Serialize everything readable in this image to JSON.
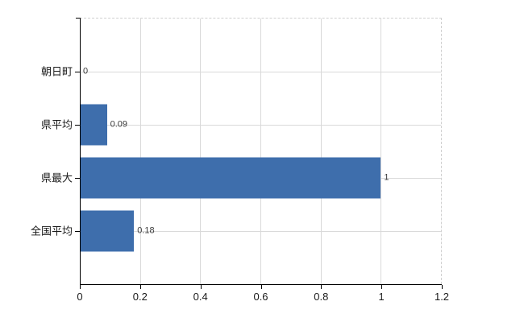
{
  "chart_data": {
    "type": "bar",
    "orientation": "horizontal",
    "title": "",
    "xlabel": "",
    "ylabel": "",
    "categories": [
      "朝日町",
      "県平均",
      "県最大",
      "全国平均"
    ],
    "values": [
      0,
      0.09,
      1,
      0.18
    ],
    "value_labels": [
      "0",
      "0.09",
      "1",
      "0.18"
    ],
    "xlim": [
      0,
      1.2
    ],
    "x_tick_values": [
      0,
      0.2,
      0.4,
      0.6,
      0.8,
      1,
      1.2
    ],
    "x_tick_labels": [
      "0",
      "0.2",
      "0.4",
      "0.6",
      "0.8",
      "1",
      "1.2"
    ],
    "grid": true,
    "legend": false,
    "bar_color": "#3e6eac"
  },
  "colors": {
    "bar": "#3e6eac",
    "gridline": "#d9d9d9",
    "frame_dashed": "#d0d0d0",
    "axis": "#000000",
    "tick_text": "#1a1a1a",
    "value_text": "#3a3a3a",
    "background": "#ffffff"
  }
}
